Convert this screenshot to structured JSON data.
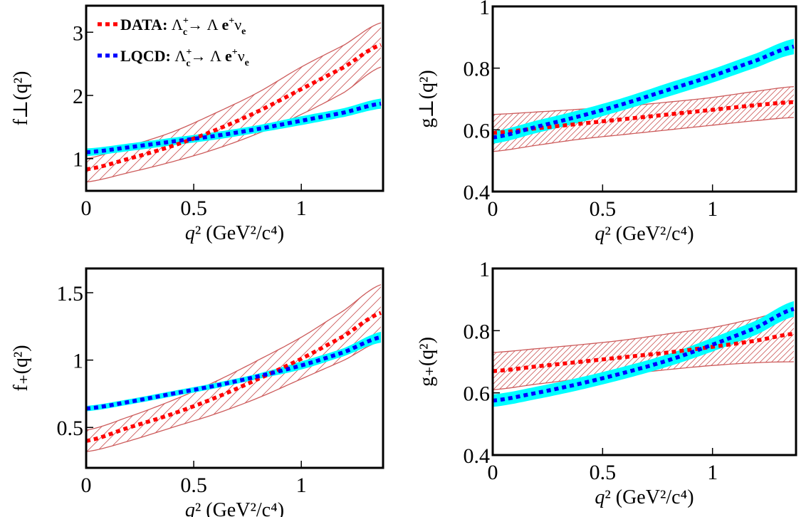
{
  "figure": {
    "legend": [
      {
        "id": "data",
        "label": "DATA:",
        "process": "Λ_c^+ → Λ e^+ ν_e",
        "color": "#ff0000",
        "band_color": "#cd5c5c",
        "band_style": "hatched"
      },
      {
        "id": "lqcd",
        "label": "LQCD:",
        "process": "Λ_c^+ → Λ e^+ ν_e",
        "color": "#0000ff",
        "band_color": "#00ffff",
        "band_style": "filled"
      }
    ]
  },
  "chart_data": [
    {
      "type": "line",
      "panel": "top-left",
      "title": "",
      "xlabel": "q² (GeV²/c⁴)",
      "ylabel": "f⊥(q²)",
      "xlim": [
        0,
        1.38
      ],
      "ylim": [
        0.49,
        3.42
      ],
      "xticks": [
        0,
        0.5,
        1
      ],
      "xtick_labels": [
        "0",
        "0.5",
        "1"
      ],
      "yticks": [
        1,
        2,
        3
      ],
      "ytick_labels": [
        "1",
        "2",
        "3"
      ],
      "legend_position": "top-left",
      "x": [
        0,
        0.2,
        0.4,
        0.6,
        0.8,
        1.0,
        1.2,
        1.37
      ],
      "series": [
        {
          "name": "DATA",
          "central": [
            0.83,
            1.0,
            1.2,
            1.45,
            1.75,
            2.1,
            2.45,
            2.8
          ],
          "lower": [
            0.63,
            0.78,
            0.95,
            1.15,
            1.4,
            1.7,
            2.05,
            2.45
          ],
          "upper": [
            1.0,
            1.2,
            1.42,
            1.72,
            2.05,
            2.45,
            2.8,
            3.15
          ]
        },
        {
          "name": "LQCD",
          "central": [
            1.1,
            1.18,
            1.27,
            1.36,
            1.47,
            1.6,
            1.73,
            1.87
          ],
          "lower": [
            1.04,
            1.12,
            1.21,
            1.3,
            1.41,
            1.53,
            1.66,
            1.79
          ],
          "upper": [
            1.16,
            1.24,
            1.33,
            1.42,
            1.53,
            1.67,
            1.8,
            1.95
          ]
        }
      ]
    },
    {
      "type": "line",
      "panel": "top-right",
      "title": "",
      "xlabel": "q² (GeV²/c⁴)",
      "ylabel": "g⊥(q²)",
      "xlim": [
        0,
        1.38
      ],
      "ylim": [
        0.4,
        1.0
      ],
      "xticks": [
        0,
        0.5,
        1
      ],
      "xtick_labels": [
        "0",
        "0.5",
        "1"
      ],
      "yticks": [
        0.4,
        0.6,
        0.8,
        1
      ],
      "ytick_labels": [
        "0.4",
        "0.6",
        "0.8",
        "1"
      ],
      "x": [
        0,
        0.2,
        0.4,
        0.6,
        0.8,
        1.0,
        1.2,
        1.37
      ],
      "series": [
        {
          "name": "DATA",
          "central": [
            0.59,
            0.605,
            0.62,
            0.635,
            0.65,
            0.665,
            0.68,
            0.69
          ],
          "lower": [
            0.53,
            0.55,
            0.57,
            0.585,
            0.6,
            0.615,
            0.63,
            0.64
          ],
          "upper": [
            0.65,
            0.658,
            0.667,
            0.677,
            0.69,
            0.705,
            0.725,
            0.74
          ]
        },
        {
          "name": "LQCD",
          "central": [
            0.575,
            0.61,
            0.645,
            0.685,
            0.73,
            0.775,
            0.825,
            0.87
          ],
          "lower": [
            0.555,
            0.59,
            0.625,
            0.665,
            0.708,
            0.753,
            0.802,
            0.845
          ],
          "upper": [
            0.595,
            0.63,
            0.665,
            0.705,
            0.752,
            0.797,
            0.848,
            0.895
          ]
        }
      ]
    },
    {
      "type": "line",
      "panel": "bottom-left",
      "title": "",
      "xlabel": "q² (GeV²/c⁴)",
      "ylabel": "f₊(q²)",
      "xlim": [
        0,
        1.38
      ],
      "ylim": [
        0.2,
        1.68
      ],
      "xticks": [
        0,
        0.5,
        1
      ],
      "xtick_labels": [
        "0",
        "0.5",
        "1"
      ],
      "yticks": [
        0.5,
        1,
        1.5
      ],
      "ytick_labels": [
        "0.5",
        "1",
        "1.5"
      ],
      "x": [
        0,
        0.2,
        0.4,
        0.6,
        0.8,
        1.0,
        1.2,
        1.37
      ],
      "series": [
        {
          "name": "DATA",
          "central": [
            0.4,
            0.5,
            0.6,
            0.72,
            0.86,
            1.01,
            1.18,
            1.35
          ],
          "lower": [
            0.32,
            0.4,
            0.5,
            0.6,
            0.72,
            0.86,
            1.0,
            1.14
          ],
          "upper": [
            0.48,
            0.58,
            0.7,
            0.84,
            1.0,
            1.17,
            1.37,
            1.56
          ]
        },
        {
          "name": "LQCD",
          "central": [
            0.64,
            0.69,
            0.75,
            0.81,
            0.88,
            0.96,
            1.06,
            1.17
          ],
          "lower": [
            0.62,
            0.67,
            0.73,
            0.79,
            0.86,
            0.93,
            1.03,
            1.13
          ],
          "upper": [
            0.66,
            0.71,
            0.77,
            0.83,
            0.9,
            0.99,
            1.09,
            1.21
          ]
        }
      ]
    },
    {
      "type": "line",
      "panel": "bottom-right",
      "title": "",
      "xlabel": "q² (GeV²/c⁴)",
      "ylabel": "g₊(q²)",
      "xlim": [
        0,
        1.38
      ],
      "ylim": [
        0.4,
        1.0
      ],
      "xticks": [
        0,
        0.5,
        1
      ],
      "xtick_labels": [
        "0",
        "0.5",
        "1"
      ],
      "yticks": [
        0.4,
        0.6,
        0.8,
        1
      ],
      "ytick_labels": [
        "0.4",
        "0.6",
        "0.8",
        "1"
      ],
      "x": [
        0,
        0.2,
        0.4,
        0.6,
        0.8,
        1.0,
        1.2,
        1.37
      ],
      "series": [
        {
          "name": "DATA",
          "central": [
            0.67,
            0.685,
            0.7,
            0.715,
            0.73,
            0.748,
            0.768,
            0.79
          ],
          "lower": [
            0.61,
            0.628,
            0.645,
            0.66,
            0.675,
            0.688,
            0.697,
            0.7
          ],
          "upper": [
            0.73,
            0.742,
            0.755,
            0.77,
            0.79,
            0.81,
            0.84,
            0.87
          ]
        },
        {
          "name": "LQCD",
          "central": [
            0.575,
            0.6,
            0.63,
            0.665,
            0.705,
            0.755,
            0.81,
            0.87
          ],
          "lower": [
            0.555,
            0.58,
            0.61,
            0.645,
            0.685,
            0.733,
            0.787,
            0.845
          ],
          "upper": [
            0.595,
            0.62,
            0.65,
            0.685,
            0.725,
            0.777,
            0.833,
            0.895
          ]
        }
      ]
    }
  ]
}
